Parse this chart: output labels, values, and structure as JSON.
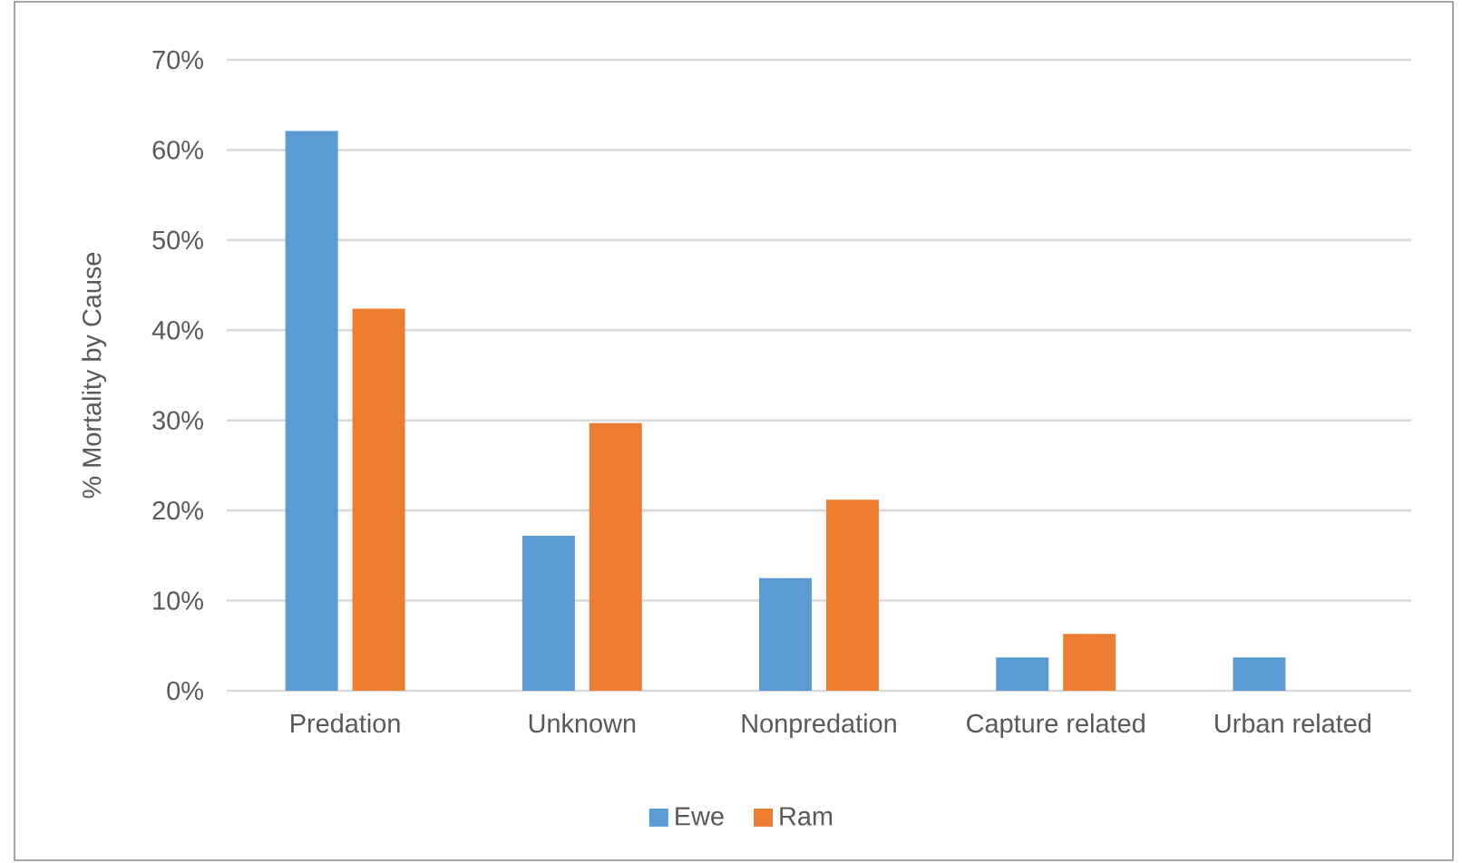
{
  "chart_data": {
    "type": "bar",
    "ylabel": "% Mortality by Cause",
    "categories": [
      "Predation",
      "Unknown",
      "Nonpredation",
      "Capture related",
      "Urban related"
    ],
    "series": [
      {
        "name": "Ewe",
        "color": "#5b9bd5",
        "values": [
          62.1,
          17.2,
          12.5,
          3.7,
          3.7
        ]
      },
      {
        "name": "Ram",
        "color": "#ed7d31",
        "values": [
          42.4,
          29.7,
          21.2,
          6.3,
          null
        ]
      }
    ],
    "ylim": [
      0,
      70
    ],
    "yticks": [
      {
        "value": 0,
        "label": "0%"
      },
      {
        "value": 10,
        "label": "10%"
      },
      {
        "value": 20,
        "label": "20%"
      },
      {
        "value": 30,
        "label": "30%"
      },
      {
        "value": 40,
        "label": "40%"
      },
      {
        "value": 50,
        "label": "50%"
      },
      {
        "value": 60,
        "label": "60%"
      },
      {
        "value": 70,
        "label": "70%"
      }
    ],
    "grid": "y",
    "legend": "bottom"
  }
}
